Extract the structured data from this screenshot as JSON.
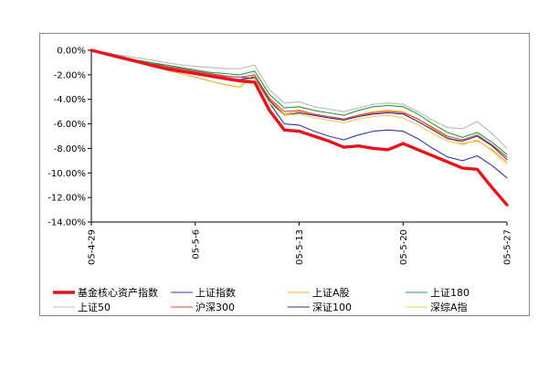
{
  "chart_data": {
    "type": "line",
    "title": "",
    "xlabel": "",
    "ylabel": "",
    "ylim": [
      -14,
      0
    ],
    "y_ticks": [
      "0.00%",
      "-2.00%",
      "-4.00%",
      "-6.00%",
      "-8.00%",
      "-10.00%",
      "-12.00%",
      "-14.00%"
    ],
    "x": [
      "05-4-29",
      "05-4-30",
      "05-5-1",
      "05-5-2",
      "05-5-3",
      "05-5-4",
      "05-5-5",
      "05-5-6",
      "05-5-7",
      "05-5-8",
      "05-5-9",
      "05-5-10",
      "05-5-11",
      "05-5-12",
      "05-5-13",
      "05-5-14",
      "05-5-15",
      "05-5-16",
      "05-5-17",
      "05-5-18",
      "05-5-19",
      "05-5-20",
      "05-5-21",
      "05-5-22",
      "05-5-23",
      "05-5-24",
      "05-5-25",
      "05-5-26",
      "05-5-27"
    ],
    "x_tick_labels": [
      {
        "index": 0,
        "label": "05-4-29"
      },
      {
        "index": 7,
        "label": "05-5-6"
      },
      {
        "index": 14,
        "label": "05-5-13"
      },
      {
        "index": 21,
        "label": "05-5-20"
      },
      {
        "index": 28,
        "label": "05-5-27"
      }
    ],
    "legend_position": "bottom",
    "grid": false,
    "series": [
      {
        "name": "基金核心资产指数",
        "color": "#e8141c",
        "width": 3.4,
        "values": [
          0,
          -0.3,
          -0.6,
          -0.9,
          -1.2,
          -1.5,
          -1.7,
          -1.9,
          -2.1,
          -2.3,
          -2.5,
          -2.6,
          -4.9,
          -6.5,
          -6.6,
          -7.0,
          -7.4,
          -7.9,
          -7.8,
          -8.0,
          -8.1,
          -7.6,
          -8.1,
          -8.6,
          -9.1,
          -9.6,
          -9.7,
          -11.2,
          -12.6
        ]
      },
      {
        "name": "上证指数",
        "color": "#3333aa",
        "width": 1.1,
        "values": [
          0,
          -0.3,
          -0.5,
          -0.8,
          -1.0,
          -1.3,
          -1.5,
          -1.7,
          -1.9,
          -2.1,
          -2.2,
          -2.3,
          -4.3,
          -6.0,
          -6.1,
          -6.6,
          -7.0,
          -7.3,
          -6.9,
          -6.6,
          -6.5,
          -6.6,
          -7.2,
          -8.0,
          -8.7,
          -9.0,
          -8.6,
          -9.4,
          -10.4
        ]
      },
      {
        "name": "上证A股",
        "color": "#f0a818",
        "width": 1.1,
        "values": [
          0,
          -0.4,
          -0.7,
          -1.0,
          -1.3,
          -1.6,
          -1.9,
          -2.2,
          -2.5,
          -2.8,
          -3.0,
          -2.0,
          -4.0,
          -5.2,
          -5.0,
          -5.3,
          -5.5,
          -5.6,
          -5.3,
          -5.0,
          -4.9,
          -5.0,
          -5.6,
          -6.4,
          -7.1,
          -7.6,
          -7.4,
          -8.1,
          -9.1
        ]
      },
      {
        "name": "上证180",
        "color": "#22a03a",
        "width": 1.1,
        "values": [
          0,
          -0.3,
          -0.5,
          -0.8,
          -1.0,
          -1.2,
          -1.4,
          -1.6,
          -1.8,
          -1.9,
          -2.0,
          -1.7,
          -3.6,
          -4.7,
          -4.6,
          -4.9,
          -5.1,
          -5.3,
          -4.9,
          -4.6,
          -4.5,
          -4.6,
          -5.2,
          -6.0,
          -6.7,
          -7.1,
          -6.7,
          -7.5,
          -8.5
        ]
      },
      {
        "name": "上证50",
        "color": "#b8b8b8",
        "width": 1.1,
        "values": [
          0,
          -0.2,
          -0.4,
          -0.6,
          -0.8,
          -1.0,
          -1.2,
          -1.3,
          -1.4,
          -1.5,
          -1.5,
          -1.2,
          -3.2,
          -4.3,
          -4.2,
          -4.6,
          -4.8,
          -5.0,
          -4.7,
          -4.4,
          -4.3,
          -4.4,
          -5.0,
          -5.7,
          -6.3,
          -6.4,
          -5.8,
          -6.8,
          -8.0
        ]
      },
      {
        "name": "沪深300",
        "color": "#e84040",
        "width": 1.1,
        "values": [
          0,
          -0.3,
          -0.6,
          -0.9,
          -1.1,
          -1.3,
          -1.5,
          -1.7,
          -1.9,
          -2.1,
          -2.2,
          -2.0,
          -3.9,
          -5.0,
          -4.9,
          -5.2,
          -5.4,
          -5.6,
          -5.3,
          -5.1,
          -5.0,
          -5.1,
          -5.6,
          -6.3,
          -7.0,
          -7.3,
          -6.9,
          -7.7,
          -8.7
        ]
      },
      {
        "name": "深证100",
        "color": "#2a2a8a",
        "width": 1.1,
        "values": [
          0,
          -0.3,
          -0.6,
          -0.9,
          -1.2,
          -1.4,
          -1.6,
          -1.8,
          -2.0,
          -2.2,
          -2.4,
          -2.2,
          -4.1,
          -5.3,
          -5.1,
          -5.3,
          -5.5,
          -5.7,
          -5.4,
          -5.2,
          -5.1,
          -5.2,
          -5.8,
          -6.5,
          -7.2,
          -7.4,
          -7.0,
          -7.8,
          -8.9
        ]
      },
      {
        "name": "深综A指",
        "color": "#f5c850",
        "width": 1.1,
        "values": [
          0,
          -0.3,
          -0.6,
          -0.9,
          -1.2,
          -1.5,
          -1.7,
          -1.9,
          -2.1,
          -2.3,
          -2.5,
          -2.3,
          -4.3,
          -5.3,
          -5.2,
          -5.5,
          -5.7,
          -5.9,
          -5.6,
          -5.4,
          -5.3,
          -5.5,
          -6.1,
          -6.8,
          -7.4,
          -7.7,
          -7.3,
          -8.2,
          -9.3
        ]
      }
    ]
  }
}
